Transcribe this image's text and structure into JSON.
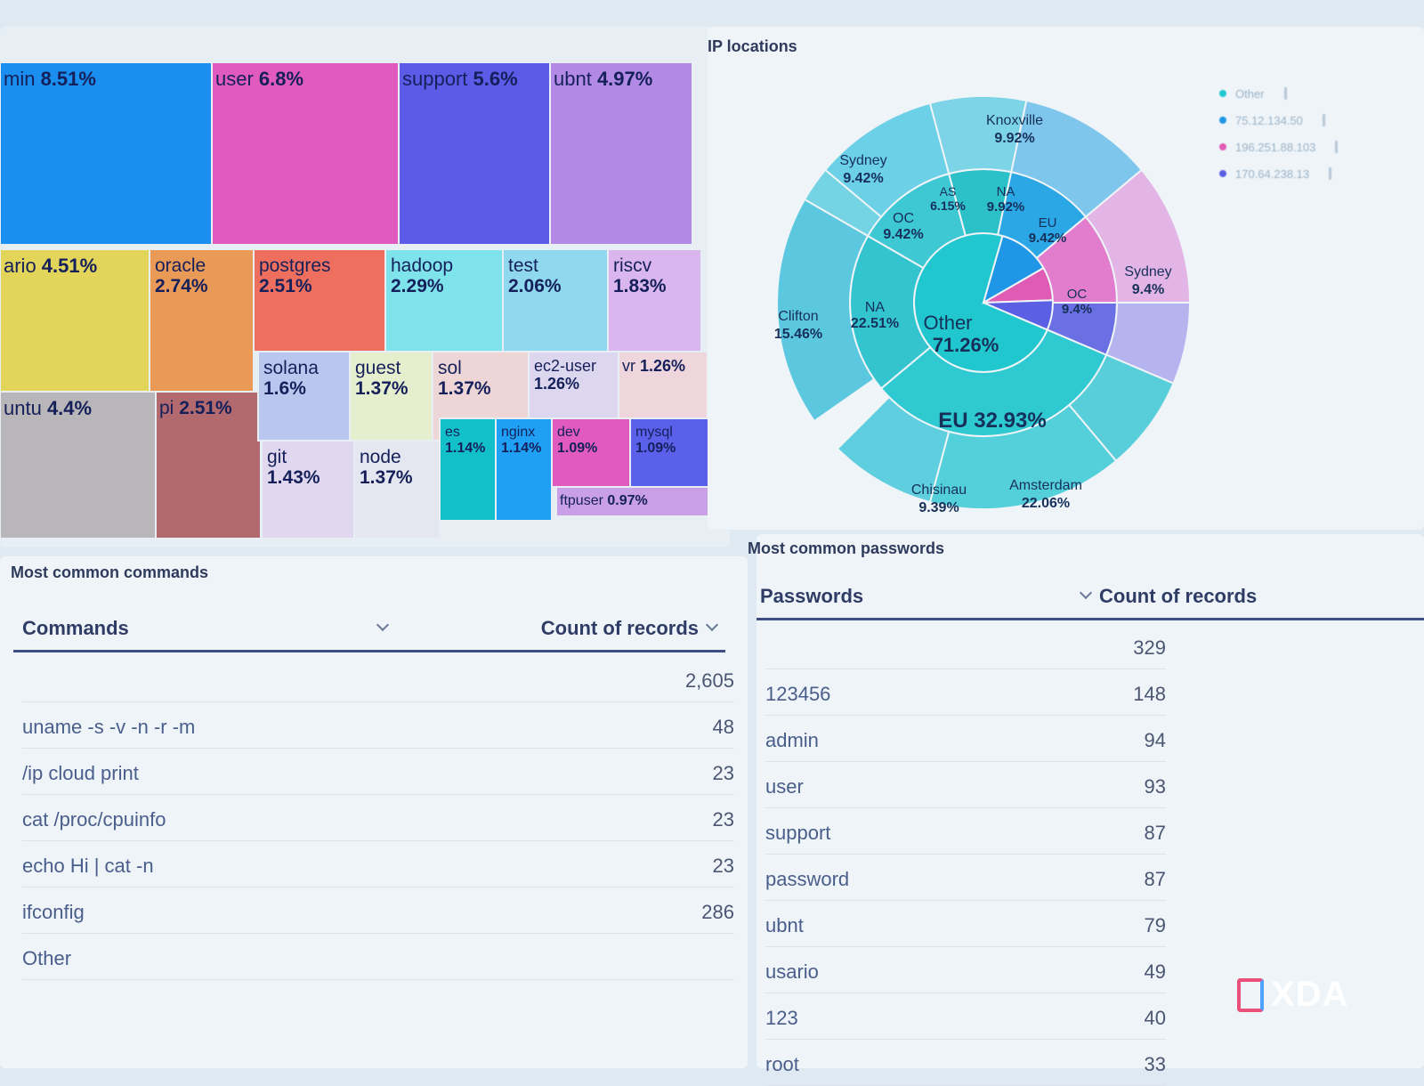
{
  "treemap": {
    "cells": [
      {
        "label": "min",
        "value": "8.51%",
        "color": "#1b8ff0"
      },
      {
        "label": "user",
        "value": "6.8%",
        "color": "#e05bbd"
      },
      {
        "label": "support",
        "value": "5.6%",
        "color": "#5b5be8"
      },
      {
        "label": "ubnt",
        "value": "4.97%",
        "color": "#b28ae6"
      },
      {
        "label": "ario",
        "value": "4.51%",
        "color": "#e3d45a"
      },
      {
        "label": "oracle",
        "value": "2.74%",
        "color": "#e99a56"
      },
      {
        "label": "postgres",
        "value": "2.51%",
        "color": "#ef6f5f"
      },
      {
        "label": "hadoop",
        "value": "2.29%",
        "color": "#7fe3ec"
      },
      {
        "label": "test",
        "value": "2.06%",
        "color": "#8fd8ee"
      },
      {
        "label": "riscv",
        "value": "1.83%",
        "color": "#dab6ee"
      },
      {
        "label": "untu",
        "value": "4.4%",
        "color": "#b9b6b9"
      },
      {
        "label": "pi",
        "value": "2.51%",
        "color": "#b26a6e"
      },
      {
        "label": "solana",
        "value": "1.6%",
        "color": "#b9c7ef"
      },
      {
        "label": "guest",
        "value": "1.37%",
        "color": "#e6efcd"
      },
      {
        "label": "sol",
        "value": "1.37%",
        "color": "#eed5d6"
      },
      {
        "label": "ec2-user",
        "value": "1.26%",
        "color": "#dcd6ee"
      },
      {
        "label": "vr",
        "value": "1.26%",
        "color": "#eed6dc"
      },
      {
        "label": "git",
        "value": "1.43%",
        "color": "#e1d8ef"
      },
      {
        "label": "node",
        "value": "1.37%",
        "color": "#e4e7f0"
      },
      {
        "label": "es",
        "value": "1.14%",
        "color": "#12c0c9"
      },
      {
        "label": "nginx",
        "value": "1.14%",
        "color": "#1fa0f5"
      },
      {
        "label": "dev",
        "value": "1.09%",
        "color": "#e05bbd"
      },
      {
        "label": "mysql",
        "value": "1.09%",
        "color": "#5a60ea"
      },
      {
        "label": "ftpuser",
        "value": "0.97%",
        "color": "#c9a0e8"
      }
    ]
  },
  "ip_locations": {
    "title": "IP locations",
    "center": {
      "label": "Other",
      "value": "71.26%"
    },
    "inner_segments": [
      {
        "label": "Other",
        "value": "71.26%",
        "color": "#20c7cf"
      },
      {
        "label": "75.12.134.50",
        "value": "",
        "color": "#1f97e6"
      },
      {
        "label": "196.251.88.103",
        "value": "",
        "color": "#df5bb4"
      },
      {
        "label": "170.64.238.13",
        "value": "",
        "color": "#5a5fe4"
      }
    ],
    "middle_segments": [
      {
        "label": "EU",
        "value": "32.93%"
      },
      {
        "label": "NA",
        "value": "22.51%"
      },
      {
        "label": "OC",
        "value": "9.42%"
      },
      {
        "label": "AS",
        "value": "6.15%"
      },
      {
        "label": "NA",
        "value": "9.92%"
      },
      {
        "label": "EU",
        "value": "9.42%"
      },
      {
        "label": "OC",
        "value": "9.4%"
      }
    ],
    "outer_segments": [
      {
        "label": "Amsterdam",
        "value": "22.06%"
      },
      {
        "label": "Chisinau",
        "value": "9.39%"
      },
      {
        "label": "Clifton",
        "value": "15.46%"
      },
      {
        "label": "Sydney",
        "value": "9.42%"
      },
      {
        "label": "Knoxville",
        "value": "9.92%"
      },
      {
        "label": "Sydney",
        "value": "9.4%"
      }
    ],
    "legend": [
      {
        "label": "Other",
        "color": "#20c7cf"
      },
      {
        "label": "75.12.134.50",
        "color": "#1f97e6"
      },
      {
        "label": "196.251.88.103",
        "color": "#df5bb4"
      },
      {
        "label": "170.64.238.13",
        "color": "#5a5fe4"
      }
    ]
  },
  "commands": {
    "title": "Most common commands",
    "col_label": "Commands",
    "col_count": "Count of records",
    "rows": [
      {
        "label": "",
        "count": "2,605"
      },
      {
        "label": "uname -s -v -n -r -m",
        "count": "48"
      },
      {
        "label": "/ip cloud print",
        "count": "23"
      },
      {
        "label": "cat /proc/cpuinfo",
        "count": "23"
      },
      {
        "label": "echo Hi | cat -n",
        "count": "23"
      },
      {
        "label": "ifconfig",
        "count": "286"
      },
      {
        "label": "Other",
        "count": ""
      }
    ]
  },
  "passwords": {
    "title": "Most common passwords",
    "col_label": "Passwords",
    "col_count": "Count of records",
    "rows": [
      {
        "label": "",
        "count": "329"
      },
      {
        "label": "123456",
        "count": "148"
      },
      {
        "label": "admin",
        "count": "94"
      },
      {
        "label": "user",
        "count": "93"
      },
      {
        "label": "support",
        "count": "87"
      },
      {
        "label": "password",
        "count": "87"
      },
      {
        "label": "ubnt",
        "count": "79"
      },
      {
        "label": "usario",
        "count": "49"
      },
      {
        "label": "123",
        "count": "40"
      },
      {
        "label": "root",
        "count": "33"
      }
    ]
  },
  "watermark": {
    "text": "XDA"
  }
}
